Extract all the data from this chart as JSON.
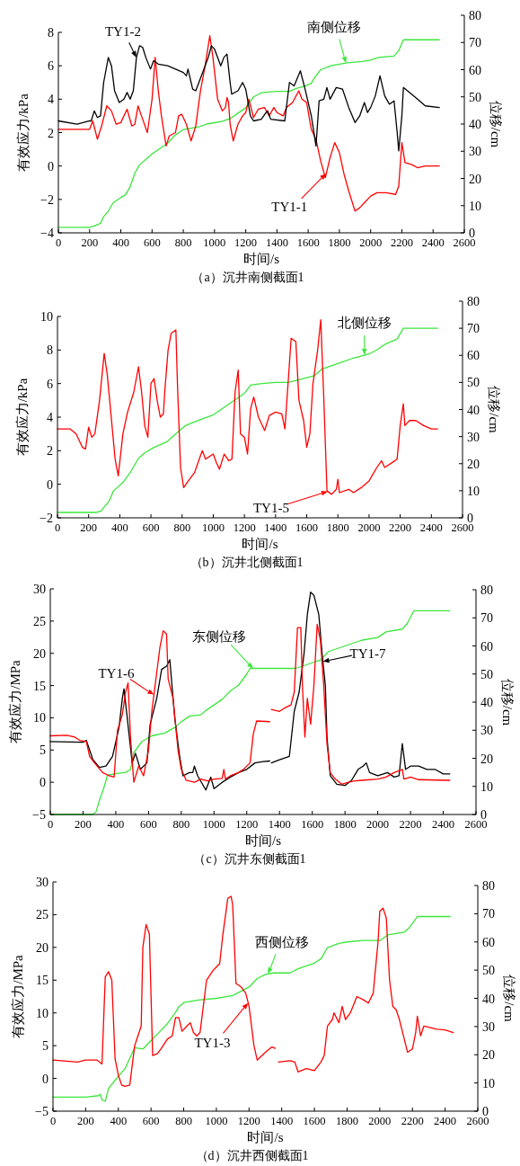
{
  "chart_data": [
    {
      "type": "line",
      "title": "（a）沉井南侧截面1",
      "xlabel": "时间/s",
      "ylabel": "有效应力/kPa",
      "y2label": "位移/cm",
      "xlim": [
        0,
        2600
      ],
      "xticks": [
        0,
        200,
        400,
        600,
        800,
        1000,
        1200,
        1400,
        1600,
        1800,
        2000,
        2200,
        2400,
        2600
      ],
      "ylim": [
        -4,
        8
      ],
      "yticks": [
        -4,
        -2,
        0,
        2,
        4,
        6,
        8
      ],
      "y2lim": [
        0,
        80
      ],
      "y2ticks": [
        0,
        10,
        20,
        30,
        40,
        50,
        60,
        70,
        80
      ],
      "series": [
        {
          "name": "TY1-2",
          "color": "#000000",
          "x": [
            0,
            120,
            200,
            210,
            230,
            250,
            270,
            290,
            320,
            340,
            360,
            390,
            420,
            440,
            460,
            480,
            500,
            520,
            540,
            560,
            590,
            610,
            640,
            700,
            750,
            800,
            820,
            830,
            860,
            880,
            920,
            960,
            980,
            1000,
            1040,
            1060,
            1080,
            1100,
            1110,
            1150,
            1180,
            1200,
            1230,
            1250,
            1300,
            1330,
            1340,
            1360,
            1450,
            1480,
            1510,
            1550,
            1580,
            1620,
            1650,
            1670,
            1700,
            1720,
            1740,
            1780,
            1820,
            1860,
            1900,
            1930,
            1960,
            1980,
            2000,
            2030,
            2060,
            2090,
            2120,
            2150,
            2170,
            2180,
            2200,
            2210,
            2250,
            2300,
            2350,
            2440
          ],
          "values": [
            2.7,
            2.5,
            2.7,
            2.7,
            3.3,
            2.9,
            3.0,
            5.0,
            6.5,
            6.0,
            4.5,
            3.8,
            4.0,
            4.4,
            4.0,
            4.5,
            6.5,
            7.2,
            7.1,
            6.5,
            5.8,
            6.3,
            6.1,
            6.0,
            5.8,
            5.6,
            5.4,
            5.8,
            4.6,
            4.5,
            5.5,
            6.5,
            7.2,
            7.0,
            6.0,
            6.5,
            6.7,
            5.0,
            4.3,
            4.5,
            5.0,
            4.6,
            3.0,
            2.7,
            2.8,
            3.2,
            3.3,
            2.8,
            2.7,
            5.0,
            4.8,
            5.7,
            4.6,
            3.0,
            1.2,
            3.9,
            4.0,
            4.7,
            4.0,
            4.7,
            4.6,
            3.5,
            2.6,
            3.0,
            3.8,
            3.2,
            3.5,
            4.2,
            5.4,
            4.2,
            3.7,
            3.9,
            2.0,
            0.9,
            3.0,
            4.7,
            4.4,
            4.0,
            3.6,
            3.5
          ]
        },
        {
          "name": "TY1-1",
          "color": "#ff0000",
          "x": [
            0,
            200,
            220,
            250,
            280,
            310,
            340,
            370,
            400,
            440,
            470,
            490,
            510,
            540,
            570,
            600,
            620,
            640,
            660,
            690,
            710,
            750,
            770,
            790,
            820,
            850,
            880,
            910,
            940,
            970,
            990,
            1020,
            1050,
            1070,
            1080,
            1090,
            1100,
            1120,
            1150,
            1180,
            1200,
            1220,
            1250,
            1280,
            1320,
            1350,
            1380,
            1400,
            1440,
            1460,
            1500,
            1540,
            1560,
            1590,
            1620,
            1650,
            1680,
            1710,
            1740,
            1770,
            1800,
            1830,
            1860,
            1900,
            1930,
            1960,
            2000,
            2040,
            2100,
            2160,
            2180,
            2200,
            2220,
            2260,
            2300,
            2350,
            2440
          ],
          "values": [
            2.2,
            2.2,
            2.7,
            1.6,
            2.5,
            3.6,
            3.3,
            2.5,
            2.6,
            3.4,
            2.4,
            2.5,
            3.6,
            2.8,
            2.0,
            4.0,
            6.5,
            4.5,
            3.0,
            1.2,
            1.8,
            2.0,
            3.0,
            3.1,
            2.5,
            1.5,
            2.4,
            4.5,
            6.0,
            7.8,
            6.5,
            4.0,
            3.3,
            3.5,
            4.1,
            3.8,
            2.5,
            1.5,
            2.5,
            3.0,
            3.2,
            4.0,
            2.9,
            3.4,
            3.5,
            3.0,
            3.5,
            3.2,
            3.0,
            3.5,
            3.8,
            4.5,
            4.0,
            3.8,
            2.2,
            1.6,
            0.3,
            -0.7,
            0.5,
            1.4,
            0.8,
            -0.5,
            -1.5,
            -2.7,
            -2.5,
            -2.2,
            -1.8,
            -1.6,
            -1.6,
            -1.7,
            -1.2,
            1.4,
            0.2,
            0.1,
            -0.1,
            0.0,
            0.0
          ]
        },
        {
          "name": "南侧位移",
          "color": "#3ce63c",
          "axis": "y2",
          "x": [
            0,
            200,
            230,
            270,
            290,
            320,
            350,
            400,
            430,
            460,
            490,
            520,
            560,
            600,
            650,
            700,
            750,
            800,
            850,
            900,
            950,
            1000,
            1050,
            1100,
            1150,
            1200,
            1250,
            1300,
            1400,
            1480,
            1520,
            1580,
            1620,
            1640,
            1680,
            1750,
            1850,
            1950,
            2000,
            2050,
            2150,
            2180,
            2210,
            2440
          ],
          "values": [
            2,
            2,
            2.5,
            3.5,
            6,
            8,
            11,
            13,
            14,
            17,
            22,
            25,
            27,
            29,
            31,
            33,
            36,
            38,
            38.5,
            39,
            40,
            40.5,
            41,
            42,
            44,
            46,
            50,
            51.5,
            52,
            52,
            53,
            54,
            55,
            57,
            60,
            61.5,
            62.5,
            63,
            63.5,
            64.5,
            65,
            67,
            71,
            71
          ]
        }
      ]
    },
    {
      "type": "line",
      "title": "（b）沉井北侧截面1",
      "xlabel": "时间/s",
      "ylabel": "有效应力/kPa",
      "y2label": "位移/cm",
      "xlim": [
        0,
        2600
      ],
      "xticks": [
        0,
        200,
        400,
        600,
        800,
        1000,
        1200,
        1400,
        1600,
        1800,
        2000,
        2200,
        2400,
        2600
      ],
      "ylim": [
        -2,
        10
      ],
      "yticks": [
        -2,
        0,
        2,
        4,
        6,
        8,
        10
      ],
      "y2lim": [
        0,
        80
      ],
      "y2ticks": [
        0,
        10,
        20,
        30,
        40,
        50,
        60,
        70,
        80
      ],
      "series": [
        {
          "name": "TY1-5",
          "color": "#ff0000",
          "x": [
            0,
            80,
            120,
            160,
            180,
            200,
            220,
            240,
            270,
            300,
            320,
            340,
            370,
            390,
            420,
            450,
            490,
            520,
            540,
            560,
            580,
            600,
            620,
            640,
            660,
            680,
            690,
            710,
            730,
            760,
            770,
            790,
            810,
            840,
            880,
            910,
            930,
            950,
            1000,
            1020,
            1040,
            1070,
            1100,
            1120,
            1140,
            1160,
            1175,
            1200,
            1220,
            1240,
            1260,
            1290,
            1330,
            1350,
            1360,
            1400,
            1440,
            1460,
            1480,
            1500,
            1530,
            1550,
            1580,
            1600,
            1620,
            1640,
            1670,
            1690,
            1710,
            1730,
            1760,
            1790,
            1800,
            1810,
            1870,
            1900,
            1950,
            2000,
            2050,
            2080,
            2100,
            2150,
            2180,
            2200,
            2220,
            2230,
            2260,
            2300,
            2350,
            2400,
            2440
          ],
          "values": [
            3.3,
            3.3,
            3.0,
            2.2,
            2.1,
            3.4,
            2.8,
            3.0,
            5.0,
            7.8,
            6.5,
            4.5,
            1.5,
            0.5,
            3.0,
            4.3,
            5.5,
            7.0,
            5.5,
            3.5,
            2.8,
            6.0,
            6.3,
            5.0,
            4.0,
            4.2,
            5.7,
            8.0,
            9.0,
            9.2,
            6.0,
            1.0,
            -0.2,
            0.2,
            0.7,
            1.5,
            2.0,
            1.5,
            1.8,
            1.3,
            0.9,
            1.8,
            1.4,
            1.5,
            5.5,
            6.8,
            3.0,
            2.8,
            1.8,
            4.5,
            5.2,
            4.0,
            3.2,
            3.8,
            4.1,
            4.3,
            4.2,
            3.3,
            6.0,
            8.7,
            8.5,
            5.0,
            3.8,
            2.2,
            3.0,
            6.0,
            8.0,
            9.8,
            5.0,
            -0.4,
            -0.6,
            -0.3,
            0.3,
            -0.5,
            -0.3,
            -0.5,
            -0.2,
            0.2,
            1.0,
            1.4,
            1.0,
            1.3,
            1.5,
            3.5,
            4.8,
            3.5,
            3.8,
            3.8,
            3.5,
            3.3,
            3.3
          ]
        },
        {
          "name": "北侧位移",
          "color": "#3ce63c",
          "axis": "y2",
          "x": [
            0,
            250,
            280,
            300,
            330,
            360,
            420,
            470,
            520,
            560,
            620,
            700,
            760,
            820,
            860,
            950,
            1000,
            1050,
            1100,
            1150,
            1200,
            1240,
            1300,
            1400,
            1480,
            1550,
            1650,
            1700,
            1800,
            1900,
            2000,
            2050,
            2100,
            2180,
            2220,
            2440
          ],
          "values": [
            2,
            2,
            2.5,
            4,
            6,
            10,
            13,
            17,
            22,
            24,
            26,
            28,
            31,
            34,
            35,
            37,
            38,
            40,
            42,
            44,
            46,
            49,
            49.5,
            50,
            50,
            51,
            52.5,
            55,
            57,
            59,
            60.5,
            62,
            64,
            66,
            70,
            70
          ]
        }
      ]
    },
    {
      "type": "line",
      "title": "（c）沉井东侧截面1",
      "xlabel": "时间/s",
      "ylabel": "有效应力/MPa",
      "y2label": "位移/cm",
      "xlim": [
        0,
        2600
      ],
      "xticks": [
        0,
        200,
        400,
        600,
        800,
        1000,
        1200,
        1400,
        1600,
        1800,
        2000,
        2200,
        2400,
        2600
      ],
      "ylim": [
        -5,
        30
      ],
      "yticks": [
        -5,
        0,
        5,
        10,
        15,
        20,
        25,
        30
      ],
      "y2lim": [
        0,
        80
      ],
      "y2ticks": [
        0,
        10,
        20,
        30,
        40,
        50,
        60,
        70,
        80
      ],
      "series": [
        {
          "name": "TY1-6",
          "color": "#ff0000",
          "x": [
            0,
            100,
            150,
            180,
            220,
            240,
            270,
            320,
            360,
            390,
            410,
            440,
            460,
            475,
            490,
            510,
            540,
            570,
            600,
            620,
            650,
            670,
            690,
            710,
            720,
            750,
            780,
            800,
            830,
            880,
            920,
            960,
            1000,
            1050,
            1060,
            1070,
            1100,
            1150,
            1180,
            1220,
            1240,
            1260,
            1340,
            1345,
            1350,
            1400,
            1430,
            1470,
            1490,
            1510,
            1530,
            1540,
            1555,
            1570,
            1590,
            1610,
            1630,
            1650,
            1670,
            1690,
            1710,
            1740,
            1780,
            1820,
            1860,
            1900,
            2000,
            2050,
            2100,
            2150,
            2160,
            2200,
            2250,
            2440
          ],
          "values": [
            7.2,
            7.3,
            7.0,
            6.5,
            6.3,
            4.0,
            3.0,
            1.5,
            1.0,
            0.8,
            8.0,
            10.5,
            14.0,
            15.4,
            7.0,
            0.0,
            2.5,
            1.0,
            5.0,
            11.0,
            17.0,
            21.0,
            23.5,
            23.0,
            16.0,
            13.0,
            5.0,
            2.0,
            0.3,
            0.0,
            0.5,
            0.2,
            0.5,
            0.6,
            2.0,
            0.5,
            1.0,
            1.5,
            2.0,
            3.0,
            7.5,
            9.5,
            9.4,
            null,
            11.3,
            11.0,
            11.5,
            12.0,
            14.0,
            24.0,
            24.0,
            15.0,
            7.0,
            13.0,
            9.0,
            15.0,
            24.5,
            22.0,
            15.0,
            6.0,
            1.5,
            0.5,
            -0.3,
            0.0,
            0.2,
            0.3,
            0.5,
            0.8,
            1.5,
            2.0,
            0.5,
            0.8,
            0.4,
            0.3
          ]
        },
        {
          "name": "TY1-7",
          "color": "#000000",
          "x": [
            0,
            200,
            220,
            240,
            260,
            300,
            340,
            380,
            420,
            440,
            450,
            470,
            500,
            520,
            550,
            590,
            610,
            650,
            680,
            710,
            730,
            760,
            790,
            810,
            850,
            870,
            880,
            900,
            950,
            980,
            1000,
            1050,
            1100,
            1150,
            1200,
            1250,
            1300,
            1340,
            1345,
            1350,
            1400,
            1460,
            1490,
            1520,
            1550,
            1570,
            1590,
            1610,
            1640,
            1660,
            1680,
            1690,
            1710,
            1750,
            1800,
            1840,
            1880,
            1910,
            1930,
            1950,
            2000,
            2060,
            2100,
            2130,
            2150,
            2170,
            2200,
            2250,
            2300,
            2350,
            2400,
            2440
          ],
          "values": [
            6.3,
            6.2,
            6.5,
            5.0,
            3.5,
            2.3,
            2.5,
            4.0,
            8.5,
            13.0,
            14.5,
            10.0,
            3.0,
            4.5,
            2.0,
            3.0,
            9.0,
            13.0,
            17.5,
            18.0,
            19.0,
            10.0,
            4.0,
            1.0,
            1.5,
            1.5,
            2.5,
            1.0,
            -1.2,
            0.8,
            -1.0,
            0.0,
            0.8,
            1.5,
            2.0,
            3.0,
            3.2,
            3.3,
            null,
            3.0,
            3.5,
            4.0,
            11.0,
            14.0,
            20.0,
            26.0,
            29.5,
            29.0,
            26.0,
            20.0,
            15.0,
            7.0,
            1.0,
            -0.3,
            -0.5,
            0.3,
            2.0,
            2.5,
            3.0,
            1.5,
            1.0,
            1.5,
            0.8,
            1.0,
            6.0,
            2.0,
            2.5,
            2.5,
            2.0,
            2.0,
            1.3,
            1.3
          ]
        },
        {
          "name": "东侧位移",
          "color": "#3ce63c",
          "axis": "y2",
          "x": [
            0,
            260,
            280,
            300,
            330,
            350,
            400,
            460,
            490,
            510,
            560,
            620,
            700,
            760,
            800,
            850,
            920,
            950,
            1000,
            1050,
            1100,
            1150,
            1200,
            1220,
            1300,
            1500,
            1600,
            1650,
            1700,
            1800,
            1900,
            2000,
            2050,
            2150,
            2180,
            2220,
            2440
          ],
          "values": [
            0,
            0,
            1,
            5,
            10,
            14,
            14.5,
            15,
            16,
            22,
            26,
            28,
            29,
            31,
            33,
            35,
            35.5,
            37,
            39,
            41,
            44,
            46,
            50,
            52,
            52,
            52,
            54,
            55,
            58,
            60,
            62,
            63,
            65,
            66,
            68,
            72.5,
            72.5
          ]
        }
      ]
    },
    {
      "type": "line",
      "title": "（d）沉井西侧截面1",
      "xlabel": "时间/s",
      "ylabel": "有效应力/MPa",
      "y2label": "位移/cm",
      "xlim": [
        0,
        2600
      ],
      "xticks": [
        0,
        200,
        400,
        600,
        800,
        1000,
        1200,
        1400,
        1600,
        1800,
        2000,
        2200,
        2400,
        2600
      ],
      "ylim": [
        -5,
        30
      ],
      "yticks": [
        -5,
        0,
        5,
        10,
        15,
        20,
        25,
        30
      ],
      "y2lim": [
        0,
        80
      ],
      "y2ticks": [
        0,
        10,
        20,
        30,
        40,
        50,
        60,
        70,
        80
      ],
      "series": [
        {
          "name": "TY1-3",
          "color": "#ff0000",
          "x": [
            0,
            150,
            200,
            270,
            300,
            320,
            340,
            360,
            380,
            400,
            420,
            440,
            470,
            500,
            520,
            540,
            550,
            570,
            590,
            610,
            640,
            660,
            700,
            730,
            750,
            770,
            790,
            820,
            840,
            860,
            880,
            900,
            920,
            940,
            980,
            1000,
            1020,
            1040,
            1070,
            1090,
            1100,
            1120,
            1150,
            1180,
            1200,
            1230,
            1250,
            1280,
            1300,
            1340,
            1360,
            1370,
            1380,
            1450,
            1480,
            1500,
            1550,
            1600,
            1640,
            1660,
            1680,
            1710,
            1720,
            1750,
            1770,
            1790,
            1820,
            1860,
            1900,
            1930,
            1960,
            1990,
            2000,
            2020,
            2040,
            2060,
            2080,
            2100,
            2120,
            2140,
            2170,
            2200,
            2220,
            2230,
            2250,
            2270,
            2300,
            2350,
            2400,
            2450
          ],
          "values": [
            2.8,
            2.5,
            2.8,
            2.8,
            2.2,
            15.5,
            16.3,
            15.0,
            3.0,
            0.5,
            -1.0,
            -1.2,
            -1.0,
            5.0,
            6.5,
            8.0,
            20.0,
            23.5,
            22.0,
            3.5,
            3.8,
            4.5,
            6.0,
            6.5,
            9.3,
            9.3,
            7.2,
            8.0,
            8.5,
            7.0,
            6.5,
            7.0,
            11.0,
            15.0,
            16.5,
            17.0,
            17.5,
            22.0,
            27.5,
            27.8,
            26.5,
            14.5,
            14.0,
            13.0,
            11.0,
            5.0,
            2.8,
            3.5,
            4.0,
            4.8,
            4.6,
            null,
            2.5,
            2.7,
            2.5,
            1.0,
            1.5,
            1.2,
            2.5,
            3.5,
            8.0,
            9.0,
            10.0,
            8.5,
            11.0,
            9.0,
            10.0,
            12.5,
            12.0,
            11.5,
            13.0,
            21.0,
            25.5,
            26.0,
            24.5,
            15.0,
            11.0,
            10.5,
            9.0,
            7.0,
            4.0,
            4.5,
            7.0,
            9.5,
            6.5,
            8.0,
            7.8,
            7.5,
            7.4,
            7.0
          ]
        },
        {
          "name": "西侧位移",
          "color": "#3ce63c",
          "axis": "y2",
          "x": [
            0,
            200,
            280,
            290,
            300,
            320,
            340,
            380,
            440,
            480,
            500,
            550,
            600,
            650,
            700,
            750,
            770,
            800,
            900,
            1000,
            1100,
            1150,
            1200,
            1250,
            1300,
            1350,
            1450,
            1500,
            1600,
            1640,
            1680,
            1750,
            1800,
            1900,
            2000,
            2050,
            2150,
            2180,
            2230,
            2430
          ],
          "values": [
            5,
            5,
            5.5,
            6,
            4,
            3.5,
            8,
            11,
            15,
            20,
            22.5,
            22,
            25,
            28,
            31,
            35,
            37,
            38.5,
            39.5,
            40,
            41,
            42.5,
            44,
            47,
            48.5,
            49,
            49,
            50.5,
            52.5,
            54,
            58,
            59.5,
            60,
            60.5,
            60.5,
            62.5,
            63.5,
            65,
            69,
            69
          ]
        }
      ]
    }
  ]
}
